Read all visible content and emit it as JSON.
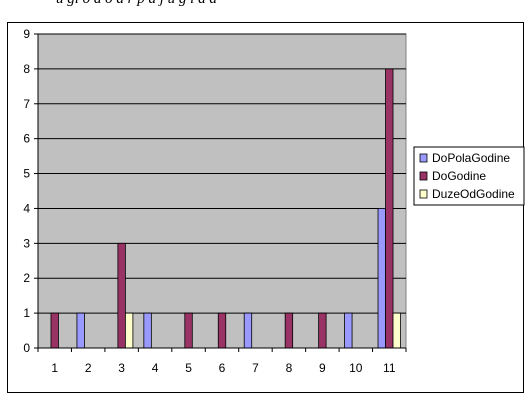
{
  "caption": "u gi o a o a r p a j u g i a a",
  "chart_data": {
    "type": "bar",
    "categories": [
      "1",
      "2",
      "3",
      "4",
      "5",
      "6",
      "7",
      "8",
      "9",
      "10",
      "11"
    ],
    "series": [
      {
        "name": "DoPolaGodine",
        "color": "#9999ff",
        "values": [
          0,
          1,
          0,
          1,
          0,
          0,
          1,
          0,
          0,
          1,
          4
        ]
      },
      {
        "name": "DoGodine",
        "color": "#993366",
        "values": [
          1,
          0,
          3,
          0,
          1,
          1,
          0,
          1,
          1,
          0,
          8
        ]
      },
      {
        "name": "DuzeOdGodine",
        "color": "#ffffcc",
        "values": [
          0,
          0,
          1,
          0,
          0,
          0,
          0,
          0,
          0,
          0,
          1
        ]
      }
    ],
    "ylim": [
      0,
      9
    ],
    "yticks": [
      0,
      1,
      2,
      3,
      4,
      5,
      6,
      7,
      8,
      9
    ],
    "plot_background": "#c0c0c0",
    "grid": true,
    "legend": "right"
  }
}
